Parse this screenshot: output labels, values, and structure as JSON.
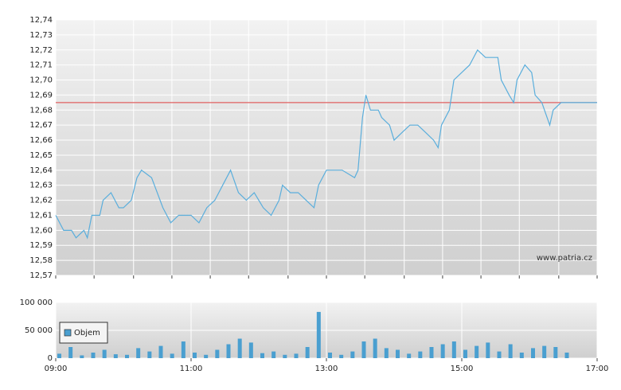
{
  "chart_data": [
    {
      "type": "line",
      "color": "#5aaedc",
      "grid": true,
      "watermark": "www.patria.cz",
      "reference_line": {
        "value": 12.685,
        "color": "#e06060"
      },
      "xlim": [
        "09:00",
        "17:00"
      ],
      "xticks": [
        "09:00",
        "09:34",
        "10:09",
        "10:43",
        "11:17",
        "11:51",
        "12:26",
        "13:00",
        "13:34",
        "14:09",
        "14:43",
        "15:17",
        "15:51",
        "16:26",
        "17:00"
      ],
      "ylim": [
        12.57,
        12.74
      ],
      "yticks": [
        {
          "value": 12.74,
          "label": "12,74"
        },
        {
          "value": 12.73,
          "label": "12,73"
        },
        {
          "value": 12.72,
          "label": "12,72"
        },
        {
          "value": 12.71,
          "label": "12,71"
        },
        {
          "value": 12.7,
          "label": "12,70"
        },
        {
          "value": 12.69,
          "label": "12,69"
        },
        {
          "value": 12.68,
          "label": "12,68"
        },
        {
          "value": 12.67,
          "label": "12,67"
        },
        {
          "value": 12.66,
          "label": "12,66"
        },
        {
          "value": 12.65,
          "label": "12,65"
        },
        {
          "value": 12.64,
          "label": "12,64"
        },
        {
          "value": 12.63,
          "label": "12,63"
        },
        {
          "value": 12.62,
          "label": "12,62"
        },
        {
          "value": 12.61,
          "label": "12,61"
        },
        {
          "value": 12.6,
          "label": "12,60"
        },
        {
          "value": 12.59,
          "label": "12,59"
        },
        {
          "value": 12.58,
          "label": "12,58"
        },
        {
          "value": 12.57,
          "label": "12,57"
        }
      ],
      "x": [
        "09:00",
        "09:07",
        "09:14",
        "09:18",
        "09:25",
        "09:28",
        "09:32",
        "09:39",
        "09:42",
        "09:49",
        "09:56",
        "10:00",
        "10:07",
        "10:12",
        "10:16",
        "10:25",
        "10:30",
        "10:35",
        "10:42",
        "10:49",
        "11:00",
        "11:07",
        "11:14",
        "11:21",
        "11:28",
        "11:35",
        "11:42",
        "11:49",
        "11:56",
        "12:04",
        "12:11",
        "12:18",
        "12:21",
        "12:28",
        "12:35",
        "12:42",
        "12:49",
        "12:53",
        "13:00",
        "13:07",
        "13:14",
        "13:25",
        "13:28",
        "13:32",
        "13:35",
        "13:39",
        "13:46",
        "13:49",
        "13:56",
        "14:00",
        "14:07",
        "14:14",
        "14:21",
        "14:28",
        "14:35",
        "14:39",
        "14:42",
        "14:49",
        "14:53",
        "15:00",
        "15:07",
        "15:14",
        "15:21",
        "15:32",
        "15:35",
        "15:42",
        "15:46",
        "15:49",
        "15:56",
        "16:02",
        "16:05",
        "16:11",
        "16:18",
        "16:21",
        "16:28",
        "17:00"
      ],
      "values": [
        12.61,
        12.6,
        12.6,
        12.595,
        12.6,
        12.595,
        12.61,
        12.61,
        12.62,
        12.625,
        12.615,
        12.615,
        12.62,
        12.635,
        12.64,
        12.635,
        12.625,
        12.615,
        12.605,
        12.61,
        12.61,
        12.605,
        12.615,
        12.62,
        12.63,
        12.64,
        12.625,
        12.62,
        12.625,
        12.615,
        12.61,
        12.62,
        12.63,
        12.625,
        12.625,
        12.62,
        12.615,
        12.63,
        12.64,
        12.64,
        12.64,
        12.635,
        12.64,
        12.675,
        12.69,
        12.68,
        12.68,
        12.675,
        12.67,
        12.66,
        12.665,
        12.67,
        12.67,
        12.665,
        12.66,
        12.655,
        12.67,
        12.68,
        12.7,
        12.705,
        12.71,
        12.72,
        12.715,
        12.715,
        12.7,
        12.69,
        12.685,
        12.7,
        12.71,
        12.705,
        12.69,
        12.685,
        12.67,
        12.68,
        12.685,
        12.685
      ]
    },
    {
      "type": "bar",
      "legend": "top-left",
      "grid": true,
      "xlim": [
        "09:00",
        "17:00"
      ],
      "xticks": [
        "09:00",
        "11:00",
        "13:00",
        "15:00",
        "17:00"
      ],
      "ylim": [
        0,
        100000
      ],
      "yticks": [
        {
          "value": 100000,
          "label": "100 000"
        },
        {
          "value": 50000,
          "label": "50 000"
        },
        0
      ],
      "x": [
        "09:00",
        "09:10",
        "09:20",
        "09:30",
        "09:40",
        "09:50",
        "10:00",
        "10:10",
        "10:20",
        "10:30",
        "10:40",
        "10:50",
        "11:00",
        "11:10",
        "11:20",
        "11:30",
        "11:40",
        "11:50",
        "12:00",
        "12:10",
        "12:20",
        "12:30",
        "12:40",
        "12:50",
        "13:00",
        "13:10",
        "13:20",
        "13:30",
        "13:40",
        "13:50",
        "14:00",
        "14:10",
        "14:20",
        "14:30",
        "14:40",
        "14:50",
        "15:00",
        "15:10",
        "15:20",
        "15:30",
        "15:40",
        "15:50",
        "16:00",
        "16:10",
        "16:20",
        "16:30"
      ],
      "series": [
        {
          "name": "Objem",
          "color": "#4a9fd0",
          "values": [
            8000,
            20000,
            5000,
            10000,
            15000,
            7000,
            6000,
            18000,
            12000,
            22000,
            8000,
            30000,
            10000,
            6000,
            15000,
            25000,
            35000,
            28000,
            9000,
            12000,
            6000,
            8000,
            20000,
            83000,
            10000,
            6000,
            12000,
            30000,
            35000,
            18000,
            15000,
            8000,
            12000,
            20000,
            25000,
            30000,
            15000,
            22000,
            28000,
            12000,
            25000,
            10000,
            18000,
            22000,
            20000,
            10000
          ]
        }
      ]
    }
  ]
}
